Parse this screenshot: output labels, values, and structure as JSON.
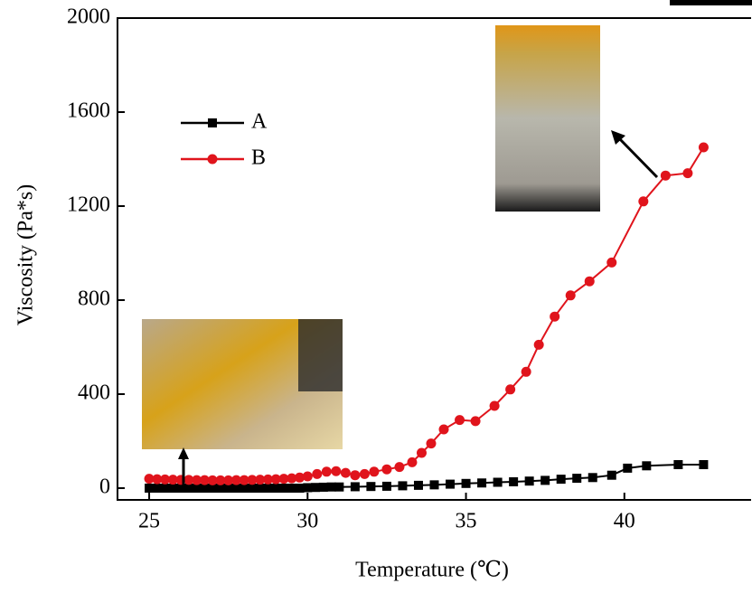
{
  "chart_data": {
    "type": "line",
    "x_label": "Temperature (℃)",
    "y_label": "Viscosity (Pa*s)",
    "xlim": [
      24,
      44
    ],
    "ylim": [
      -50,
      2000
    ],
    "xticks": [
      25,
      30,
      35,
      40
    ],
    "yticks": [
      0,
      400,
      800,
      1200,
      1600,
      2000
    ],
    "legend": "upper left",
    "series": [
      {
        "name": "A",
        "color": "#000000",
        "marker": "square",
        "x": [
          25,
          25.25,
          25.5,
          25.75,
          26,
          26.25,
          26.5,
          26.75,
          27,
          27.25,
          27.5,
          27.75,
          28,
          28.25,
          28.5,
          28.75,
          29,
          29.25,
          29.5,
          29.75,
          30,
          30.25,
          30.5,
          30.75,
          31,
          31.5,
          32,
          32.5,
          33,
          33.5,
          34,
          34.5,
          35,
          35.5,
          36,
          36.5,
          37,
          37.5,
          38,
          38.5,
          39,
          39.6,
          40.1,
          40.7,
          41.7,
          42.5
        ],
        "values": [
          0,
          0,
          0,
          0,
          0,
          0,
          0,
          0,
          0,
          0,
          0,
          0,
          0,
          0,
          0,
          0,
          0,
          0,
          0,
          0,
          2,
          3,
          4,
          5,
          5,
          6,
          7,
          8,
          10,
          12,
          14,
          17,
          20,
          22,
          25,
          27,
          30,
          33,
          38,
          42,
          45,
          55,
          85,
          95,
          100,
          100
        ]
      },
      {
        "name": "B",
        "color": "#e0141c",
        "marker": "circle",
        "x": [
          25,
          25.25,
          25.5,
          25.75,
          26,
          26.25,
          26.5,
          26.75,
          27,
          27.25,
          27.5,
          27.75,
          28,
          28.25,
          28.5,
          28.75,
          29,
          29.25,
          29.5,
          29.75,
          30,
          30.3,
          30.6,
          30.9,
          31.2,
          31.5,
          31.8,
          32.1,
          32.5,
          32.9,
          33.3,
          33.6,
          33.9,
          34.3,
          34.8,
          35.3,
          35.9,
          36.4,
          36.9,
          37.3,
          37.8,
          38.3,
          38.9,
          39.6,
          40.6,
          41.3,
          42.0,
          42.5
        ],
        "values": [
          40,
          38,
          37,
          36,
          35,
          35,
          34,
          34,
          33,
          33,
          33,
          34,
          34,
          35,
          36,
          37,
          38,
          40,
          42,
          45,
          50,
          60,
          70,
          72,
          65,
          55,
          60,
          70,
          80,
          90,
          110,
          150,
          190,
          250,
          290,
          285,
          350,
          420,
          495,
          610,
          730,
          820,
          880,
          960,
          1220,
          1330,
          1340,
          1450
        ]
      }
    ]
  }
}
